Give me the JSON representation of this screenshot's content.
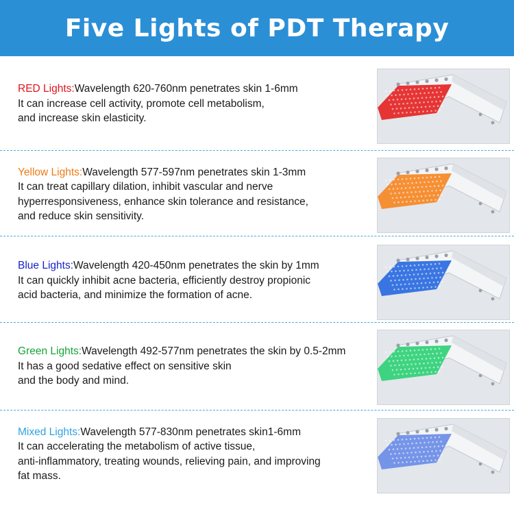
{
  "banner": {
    "title": "Five Lights of PDT Therapy"
  },
  "colors": {
    "banner": "#2b8fd6",
    "separator": "#49a7df"
  },
  "lights": [
    {
      "name": "RED Lights:",
      "name_color": "#e0141c",
      "panel_color": "#e52a2a",
      "lines": [
        "Wavelength 620-760nm penetrates skin 1-6mm",
        "It can increase cell activity, promote cell metabolism,",
        "and increase skin elasticity."
      ]
    },
    {
      "name": "Yellow Lights:",
      "name_color": "#f07a17",
      "panel_color": "#f58a2a",
      "lines": [
        "Wavelength 577-597nm penetrates skin 1-3mm",
        "It can treat capillary dilation, inhibit vascular and nerve",
        "hyperresponsiveness, enhance skin tolerance and resistance,",
        "and reduce skin sensitivity."
      ]
    },
    {
      "name": "Blue Lights:",
      "name_color": "#1722c8",
      "panel_color": "#2f6fe0",
      "lines": [
        "Wavelength 420-450nm penetrates the skin by 1mm",
        "It can quickly inhibit acne bacteria, efficiently destroy propionic",
        "acid bacteria, and minimize the formation of acne."
      ]
    },
    {
      "name": "Green Lights:",
      "name_color": "#17a33a",
      "panel_color": "#35d27a",
      "lines": [
        "Wavelength 492-577nm penetrates the skin by 0.5-2mm",
        "It has a good sedative effect on sensitive skin",
        "and the body and mind."
      ]
    },
    {
      "name": "Mixed Lights:",
      "name_color": "#2fa3e0",
      "panel_color": "#6f8fe8",
      "lines": [
        "Wavelength 577-830nm penetrates skin1-6mm",
        "It can accelerating the metabolism of active tissue,",
        "anti-inflammatory, treating wounds, relieving pain, and improving",
        "fat mass."
      ]
    }
  ]
}
